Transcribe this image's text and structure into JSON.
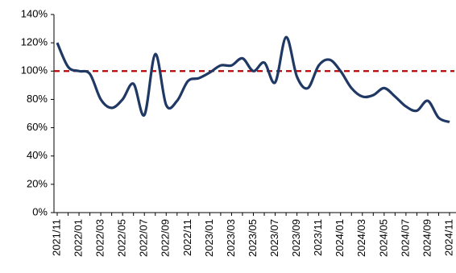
{
  "chart_data": {
    "type": "line",
    "categories": [
      "2021/11",
      null,
      "2022/01",
      null,
      "2022/03",
      null,
      "2022/05",
      null,
      "2022/07",
      null,
      "2022/09",
      null,
      "2022/11",
      null,
      "2023/01",
      null,
      "2023/03",
      null,
      "2023/05",
      null,
      "2023/07",
      null,
      "2023/09",
      null,
      "2023/11",
      null,
      "2024/01",
      null,
      "2024/03",
      null,
      "2024/05",
      null,
      "2024/07",
      null,
      "2024/09",
      null,
      "2024/11"
    ],
    "values": [
      120,
      103,
      100,
      98,
      80,
      74,
      80,
      91,
      69,
      112,
      76,
      79,
      93,
      95,
      99,
      104,
      104,
      109,
      100,
      106,
      92,
      124,
      96,
      88,
      104,
      108,
      100,
      88,
      82,
      83,
      88,
      82,
      75,
      72,
      79,
      67,
      64
    ],
    "color": "#1f3864",
    "ylim": [
      0,
      140
    ],
    "yticks": [
      {
        "value": 0,
        "label": "0%"
      },
      {
        "value": 20,
        "label": "20%"
      },
      {
        "value": 40,
        "label": "40%"
      },
      {
        "value": 60,
        "label": "60%"
      },
      {
        "value": 80,
        "label": "80%"
      },
      {
        "value": 100,
        "label": "100%"
      },
      {
        "value": 120,
        "label": "120%"
      },
      {
        "value": 140,
        "label": "140%"
      }
    ],
    "reference_line": {
      "value": 100,
      "color": "#c00000"
    },
    "grid": false
  }
}
